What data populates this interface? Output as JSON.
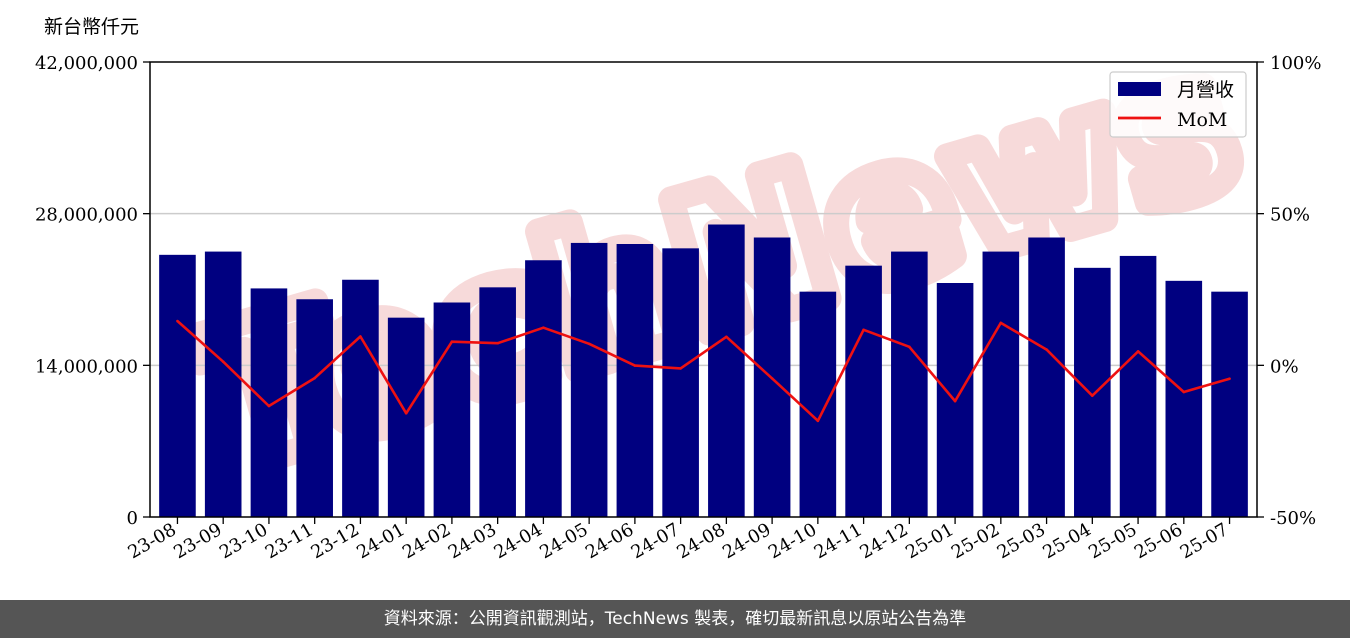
{
  "footer": {
    "text": "資料來源：公開資訊觀測站，TechNews 製表，確切最新訊息以原站公告為準"
  },
  "watermark": {
    "text": "TechNews",
    "color": "#f7dada"
  },
  "chart_data": {
    "type": "bar",
    "ylabel": "新台幣仟元",
    "categories": [
      "23-08",
      "23-09",
      "23-10",
      "23-11",
      "23-12",
      "24-01",
      "24-02",
      "24-03",
      "24-04",
      "24-05",
      "24-06",
      "24-07",
      "24-08",
      "24-09",
      "24-10",
      "24-11",
      "24-12",
      "25-01",
      "25-02",
      "25-03",
      "25-04",
      "25-05",
      "25-06",
      "25-07"
    ],
    "series": [
      {
        "name": "月營收",
        "type": "bar",
        "axis": "left",
        "color": "#000080",
        "values": [
          24200000,
          24500000,
          21100000,
          20100000,
          21900000,
          18400000,
          19800000,
          21200000,
          23700000,
          25300000,
          25200000,
          24800000,
          27000000,
          25800000,
          20800000,
          23200000,
          24500000,
          21600000,
          24500000,
          25800000,
          23000000,
          24100000,
          21800000,
          20800000
        ]
      },
      {
        "name": "MoM",
        "type": "line",
        "axis": "right",
        "color": "#ee1111",
        "values": [
          14.6,
          1.2,
          -13.4,
          -4.2,
          9.5,
          -15.8,
          7.8,
          7.3,
          12.4,
          7.1,
          -0.1,
          -1.0,
          9.4,
          -4.3,
          -18.3,
          11.7,
          6.1,
          -11.8,
          14.0,
          5.2,
          -10.0,
          4.6,
          -8.8,
          -4.4
        ]
      }
    ],
    "y_left": {
      "ylim": [
        0,
        42000000
      ],
      "ticks": [
        "0",
        "14,000,000",
        "28,000,000",
        "42,000,000"
      ],
      "tick_values": [
        0,
        14000000,
        28000000,
        42000000
      ]
    },
    "y_right": {
      "ylim": [
        -50,
        100
      ],
      "ticks": [
        "-50%",
        "0%",
        "50%",
        "100%"
      ],
      "tick_values": [
        -50,
        0,
        50,
        100
      ]
    },
    "grid": "horizontal",
    "legend": {
      "position": "top-right",
      "entries": [
        "月營收",
        "MoM"
      ]
    }
  }
}
